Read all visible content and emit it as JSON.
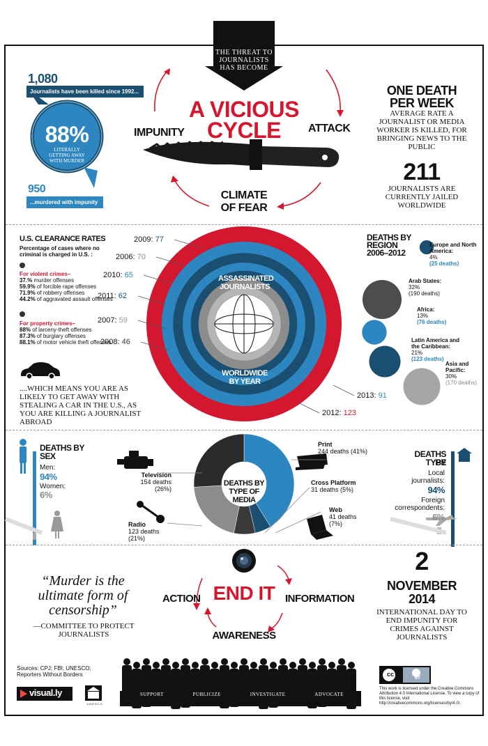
{
  "header": {
    "arrow_text": "THE THREAT TO JOURNALISTS HAS BECOME",
    "title_line1": "A VICIOUS",
    "title_line2": "CYCLE",
    "impunity": "IMPUNITY",
    "attack": "ATTACK",
    "climate_line1": "CLIMATE",
    "climate_line2": "OF FEAR"
  },
  "killed": {
    "count": "1,080",
    "count_label": "Journalists have been killed since 1992...",
    "percent": "88%",
    "percent_label": "LITERALLY GETTING AWAY WITH MURDER",
    "impunity_count": "950",
    "impunity_label": "...murdered with impunity"
  },
  "per_week": {
    "title_line1": "ONE DEATH",
    "title_line2": "PER WEEK",
    "desc": "AVERAGE RATE A JOURNALIST OR MEDIA WORKER IS KILLED, FOR BRINGING NEWS TO THE PUBLIC",
    "jailed": "211",
    "jailed_label": "JOURNALISTS ARE CURRENTLY JAILED WORLDWIDE"
  },
  "clearance": {
    "title": "U.S. CLEARANCE RATES",
    "subtitle": "Percentage of cases where no criminal is charged in U.S. :",
    "violent_head": "For violent crimes–",
    "violent": [
      {
        "pct": "37.%",
        "text": "murder offenses"
      },
      {
        "pct": "59.9%",
        "text": "of forcible rape offenses"
      },
      {
        "pct": "71.9%",
        "text": "of robbery offenses"
      },
      {
        "pct": "44.2%",
        "text": "of aggravated assault offenses"
      }
    ],
    "property_head": "For property crimes–",
    "property": [
      {
        "pct": "88%",
        "text": "of larceny-theft offenses"
      },
      {
        "pct": "87.3%",
        "text": "of burglary offenses"
      },
      {
        "pct": "88.1%",
        "text": "of motor vehicle theft offenses"
      }
    ],
    "car_text": "....WHICH MEANS YOU ARE AS LIKELY TO GET AWAY WITH STEALING A CAR IN THE U.S., AS YOU ARE KILLING A JOURNALIST ABROAD"
  },
  "center": {
    "label_top": "ASSASSINATED JOURNALISTS",
    "label_bottom": "WORLDWIDE BY YEAR"
  },
  "region": {
    "title_line1": "DEATHS BY",
    "title_line2": "REGION",
    "title_line3": "2006–2012",
    "items": [
      {
        "name": "Europe and North America:",
        "pct": "4%",
        "deaths": "(25 deaths)"
      },
      {
        "name": "Arab States:",
        "pct": "32%",
        "deaths": "(190 deaths)"
      },
      {
        "name": "Africa:",
        "pct": "13%",
        "deaths": "(76 deaths)"
      },
      {
        "name": "Latin America and the Caribbean:",
        "pct": "21%",
        "deaths": "(123 deaths)"
      },
      {
        "name": "Asia and Pacific:",
        "pct": "30%",
        "deaths": "(170 deaths)"
      }
    ]
  },
  "sex": {
    "title_line1": "DEATHS BY",
    "title_line2": "SEX",
    "men_label": "Men:",
    "men_pct": "94%",
    "women_label": "Women:",
    "women_pct": "6%"
  },
  "media": {
    "center_label": "DEATHS BY TYPE OF MEDIA",
    "television": "Television",
    "television_deaths": "154 deaths",
    "television_pct": "(26%)",
    "radio": "Radio",
    "radio_deaths": "123 deaths",
    "radio_pct": "(21%)",
    "print": "Print",
    "print_deaths": "244 deaths (41%)",
    "cross": "Cross Platform",
    "cross_deaths": "31 deaths (5%)",
    "web": "Web",
    "web_deaths": "41 deaths",
    "web_pct": "(7%)"
  },
  "type": {
    "title_line1": "DEATHS BY",
    "title_line2": "TYPE",
    "local_label": "Local journalists:",
    "local_pct": "94%",
    "foreign_label": "Foreign correspondents:",
    "foreign_pct": "6%"
  },
  "bottom": {
    "quote": "“Murder is the ultimate form of censorship”",
    "quote_source": "—COMMITTEE TO PROTECT JOURNALISTS",
    "end_it": "END IT",
    "action": "ACTION",
    "information": "INFORMATION",
    "awareness": "AWARENESS",
    "date_num": "2",
    "date_month": "NOVEMBER",
    "date_year": "2014",
    "date_desc": "INTERNATIONAL DAY TO END IMPUNITY FOR CRIMES AGAINST JOURNALISTS",
    "crowd_words": [
      "SUPPORT",
      "PUBLICIZE",
      "INVESTIGATE",
      "ADVOCATE"
    ],
    "sources": "Sources: CPJ; FBI; UNESCO; Reporters Without Borders",
    "visually": "visual.ly",
    "unesco": "UNESCO",
    "license": "This work is licensed under the Creative Commons Attribution 4.0 International License. To view a copy of this license, visit http://creativecommons.org/licenses/by/4.0/.",
    "cc": "cc",
    "by": "BY"
  },
  "colors": {
    "red": "#d2172e",
    "blue": "#2e86c1",
    "navy": "#1b4f72",
    "dark": "#3a3a3a",
    "gray": "#8c8c8c"
  },
  "chart_data": [
    {
      "type": "radial",
      "title": "ASSASSINATED JOURNALISTS WORLDWIDE BY YEAR",
      "categories": [
        "2006",
        "2007",
        "2008",
        "2009",
        "2010",
        "2011",
        "2012",
        "2013"
      ],
      "values": [
        70,
        59,
        46,
        77,
        65,
        62,
        123,
        91
      ],
      "labels": [
        "2006: 70",
        "2007: 59",
        "2008: 46",
        "2009: 77",
        "2010: 65",
        "2011: 62",
        "2012: 123",
        "2013: 91"
      ]
    },
    {
      "type": "pie",
      "title": "DEATHS BY TYPE OF MEDIA",
      "categories": [
        "Print",
        "Cross Platform",
        "Web",
        "Radio",
        "Television"
      ],
      "values": [
        244,
        31,
        41,
        123,
        154
      ],
      "percent": [
        41,
        5,
        7,
        21,
        26
      ]
    },
    {
      "type": "bubble",
      "title": "DEATHS BY REGION 2006–2012",
      "categories": [
        "Europe and North America",
        "Arab States",
        "Africa",
        "Latin America and the Caribbean",
        "Asia and Pacific"
      ],
      "values": [
        25,
        190,
        76,
        123,
        170
      ],
      "percent": [
        4,
        32,
        13,
        21,
        30
      ]
    },
    {
      "type": "bar",
      "title": "DEATHS BY SEX",
      "categories": [
        "Men",
        "Women"
      ],
      "values": [
        94,
        6
      ]
    },
    {
      "type": "bar",
      "title": "DEATHS BY TYPE",
      "categories": [
        "Local journalists",
        "Foreign correspondents"
      ],
      "values": [
        94,
        6
      ]
    }
  ]
}
